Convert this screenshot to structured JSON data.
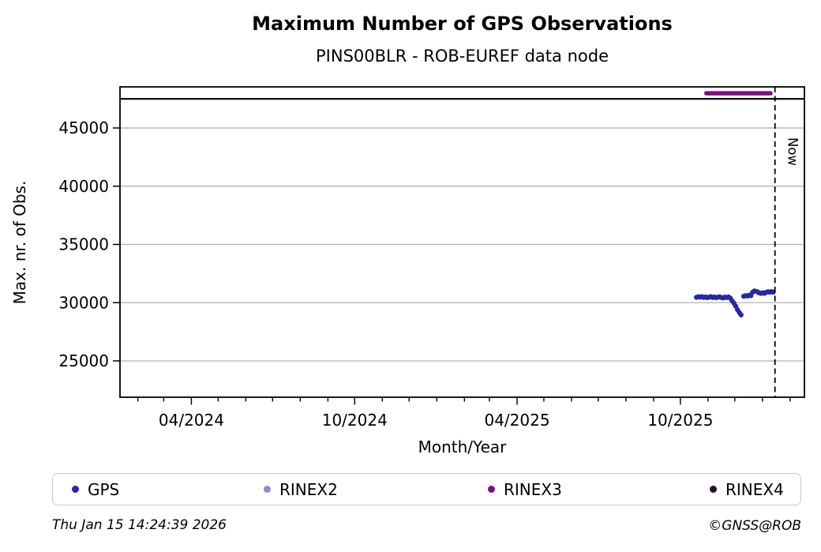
{
  "header": {
    "title": "Maximum Number of GPS Observations",
    "subtitle": "PINS00BLR - ROB-EUREF data node"
  },
  "footer": {
    "timestamp": "Thu Jan 15 14:24:39 2026",
    "copyright": "©GNSS@ROB"
  },
  "legend": {
    "position": "bottom",
    "items": [
      {
        "label": "GPS",
        "color": "#2626a8"
      },
      {
        "label": "RINEX2",
        "color": "#8d8dce"
      },
      {
        "label": "RINEX3",
        "color": "#7d107d"
      },
      {
        "label": "RINEX4",
        "color": "#2b0b2e"
      }
    ]
  },
  "chart_data": {
    "type": "scatter",
    "title": "Maximum Number of GPS Observations",
    "subtitle": "PINS00BLR - ROB-EUREF data node",
    "xlabel": "Month/Year",
    "ylabel": "Max. nr. of Obs.",
    "x_domain": [
      "2024-01-12",
      "2026-02-17"
    ],
    "y_domain": [
      21880,
      48530
    ],
    "grid": "horizontal",
    "colors": {
      "grid": "#b0b0b0",
      "axis": "#000000"
    },
    "y_ticks": [
      {
        "value": 45000,
        "label": "45000"
      },
      {
        "value": 40000,
        "label": "40000"
      },
      {
        "value": 35000,
        "label": "35000"
      },
      {
        "value": 30000,
        "label": "30000"
      },
      {
        "value": 25000,
        "label": "25000"
      }
    ],
    "x_ticks": [
      {
        "date": "2024-04-01",
        "label": "04/2024"
      },
      {
        "date": "2024-10-01",
        "label": "10/2024"
      },
      {
        "date": "2025-04-01",
        "label": "04/2025"
      },
      {
        "date": "2025-10-01",
        "label": "10/2025"
      }
    ],
    "x_minor_ticks": "monthly",
    "max_line": {
      "value": 47500,
      "color": "#000000"
    },
    "annotations": {
      "now": {
        "date": "2026-01-15",
        "label": "Now",
        "line_style": "dashed",
        "color": "#000000"
      }
    },
    "series": [
      {
        "name": "GPS",
        "type": "scatter",
        "color": "#2626a8",
        "points": [
          [
            "2025-10-19",
            30460
          ],
          [
            "2025-10-21",
            30500
          ],
          [
            "2025-10-23",
            30480
          ],
          [
            "2025-10-25",
            30520
          ],
          [
            "2025-10-27",
            30450
          ],
          [
            "2025-10-29",
            30490
          ],
          [
            "2025-10-31",
            30430
          ],
          [
            "2025-11-02",
            30470
          ],
          [
            "2025-11-04",
            30510
          ],
          [
            "2025-11-06",
            30450
          ],
          [
            "2025-11-08",
            30490
          ],
          [
            "2025-11-10",
            30430
          ],
          [
            "2025-11-12",
            30470
          ],
          [
            "2025-11-14",
            30500
          ],
          [
            "2025-11-16",
            30440
          ],
          [
            "2025-11-18",
            30410
          ],
          [
            "2025-11-20",
            30480
          ],
          [
            "2025-11-22",
            30440
          ],
          [
            "2025-11-24",
            30490
          ],
          [
            "2025-11-26",
            30380
          ],
          [
            "2025-11-28",
            30150
          ],
          [
            "2025-11-30",
            29950
          ],
          [
            "2025-12-02",
            29700
          ],
          [
            "2025-12-04",
            29400
          ],
          [
            "2025-12-06",
            29150
          ],
          [
            "2025-12-08",
            28950
          ],
          [
            "2025-12-11",
            30550
          ],
          [
            "2025-12-13",
            30600
          ],
          [
            "2025-12-15",
            30570
          ],
          [
            "2025-12-17",
            30640
          ],
          [
            "2025-12-19",
            30600
          ],
          [
            "2025-12-21",
            30900
          ],
          [
            "2025-12-23",
            31000
          ],
          [
            "2025-12-26",
            30950
          ],
          [
            "2025-12-28",
            30850
          ],
          [
            "2025-12-30",
            30800
          ],
          [
            "2026-01-01",
            30850
          ],
          [
            "2026-01-03",
            30800
          ],
          [
            "2026-01-05",
            30880
          ],
          [
            "2026-01-07",
            30940
          ],
          [
            "2026-01-09",
            30900
          ],
          [
            "2026-01-11",
            30950
          ],
          [
            "2026-01-13",
            30900
          ]
        ]
      },
      {
        "name": "RINEX2",
        "type": "scatter",
        "color": "#8d8dce",
        "points": []
      },
      {
        "name": "RINEX3",
        "type": "line",
        "color": "#7d107d",
        "points": [
          [
            "2025-10-30",
            47980
          ],
          [
            "2026-01-10",
            47980
          ]
        ]
      },
      {
        "name": "RINEX4",
        "type": "scatter",
        "color": "#2b0b2e",
        "points": []
      }
    ]
  }
}
